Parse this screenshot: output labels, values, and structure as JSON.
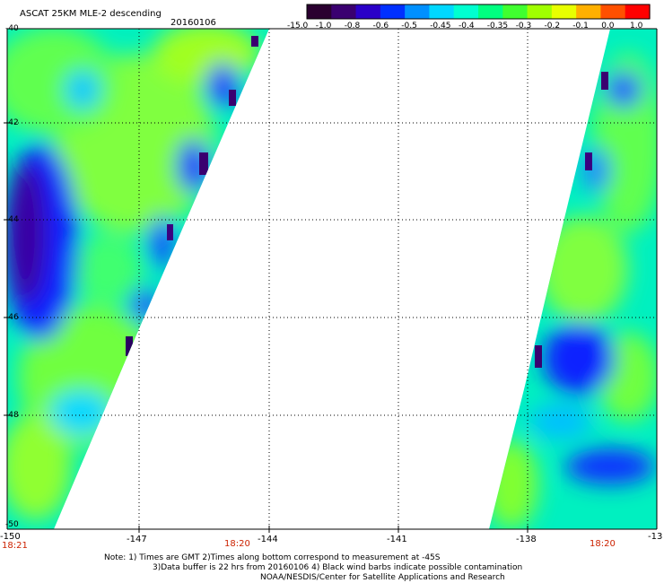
{
  "header": {
    "title": "ASCAT 25KM MLE-2 descending",
    "date": "20160106"
  },
  "colorbar": {
    "colors": [
      "#2a0030",
      "#3a0070",
      "#2a00c8",
      "#0030ff",
      "#0090ff",
      "#00d8ff",
      "#00ffd0",
      "#00ff80",
      "#40ff30",
      "#a0ff00",
      "#e8ff00",
      "#ffb000",
      "#ff5000",
      "#ff0000"
    ],
    "labels": [
      "-15.0",
      "-1.0",
      "-0.8",
      "-0.6",
      "-0.5",
      "-0.45",
      "-0.4",
      "-0.35",
      "-0.3",
      "-0.2",
      "-0.1",
      "0.0",
      "1.0"
    ]
  },
  "axes": {
    "lon_labels": [
      "-150",
      "-147",
      "-144",
      "-141",
      "-138",
      "-13"
    ],
    "lat_labels": [
      "-40",
      "-42",
      "-44",
      "-46",
      "-48",
      "-50"
    ]
  },
  "times": {
    "left": "18:21",
    "mid": "18:20",
    "right": "18:20"
  },
  "notes": {
    "line1": "Note: 1) Times are GMT 2)Times along bottom correspond to measurement at -45S",
    "line2": "3)Data buffer is 22 hrs from 20160106 4) Black wind barbs indicate possible contamination",
    "line3": "NOAA/NESDIS/Center for Satellite Applications and Research"
  }
}
